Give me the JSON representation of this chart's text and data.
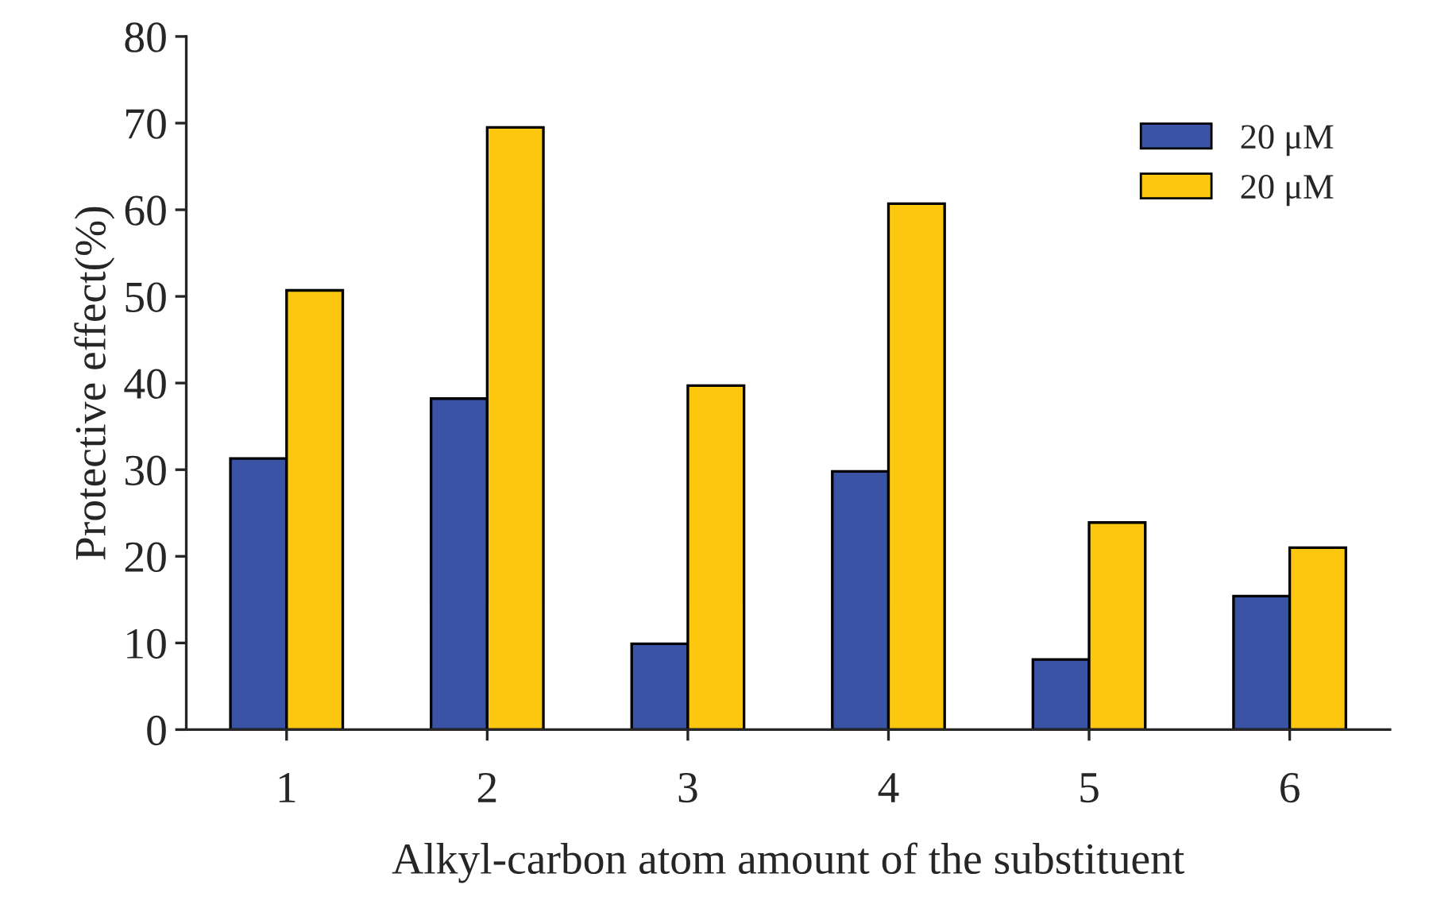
{
  "chart_data": {
    "type": "bar",
    "xlabel": "Alkyl-carbon atom amount of the substituent",
    "ylabel": "Protective effect(%)",
    "categories": [
      "1",
      "2",
      "3",
      "4",
      "5",
      "6"
    ],
    "series": [
      {
        "name": "20 μM",
        "color": "#3a53a4",
        "values": [
          31.3,
          38.2,
          9.9,
          29.8,
          8.1,
          15.4
        ]
      },
      {
        "name": "20 μM",
        "color": "#fdc70f",
        "values": [
          50.7,
          69.5,
          39.7,
          60.7,
          23.9,
          21.0
        ]
      }
    ],
    "ylim": [
      0,
      80
    ],
    "yticks": [
      0,
      10,
      20,
      30,
      40,
      50,
      60,
      70,
      80
    ],
    "grid": false,
    "legend": "top right"
  }
}
